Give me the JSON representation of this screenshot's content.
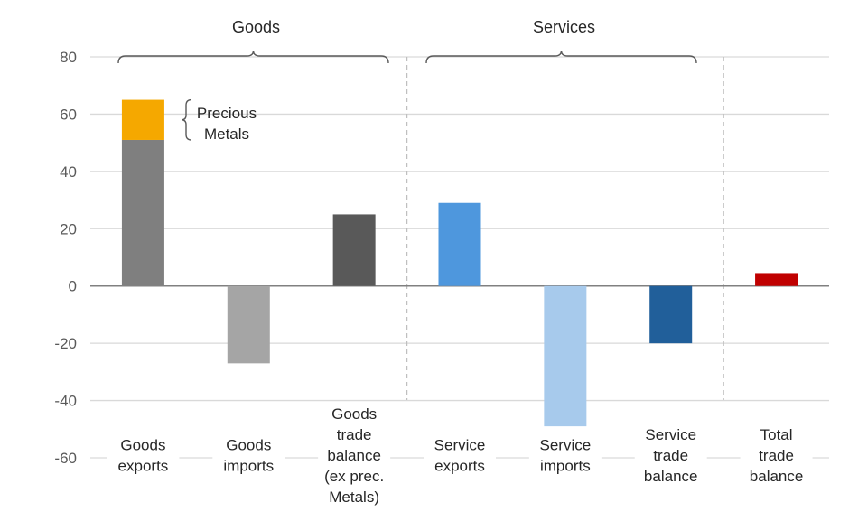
{
  "chart_data": {
    "type": "bar",
    "title": "",
    "xlabel": "",
    "ylabel": "",
    "ylim": [
      -60,
      80
    ],
    "yticks": [
      80,
      60,
      40,
      20,
      0,
      -20,
      -40,
      -60
    ],
    "grid": true,
    "groups": [
      {
        "name": "Goods",
        "categories": [
          0,
          1,
          2
        ]
      },
      {
        "name": "Services",
        "categories": [
          3,
          4,
          5
        ]
      }
    ],
    "categories": [
      [
        "Goods",
        "exports"
      ],
      [
        "Goods",
        "imports"
      ],
      [
        "Goods",
        "trade",
        "balance",
        "(ex prec.",
        "Metals)"
      ],
      [
        "Service",
        "exports"
      ],
      [
        "Service",
        "imports"
      ],
      [
        "Service",
        "trade",
        "balance"
      ],
      [
        "Total",
        "trade",
        "balance"
      ]
    ],
    "series": [
      {
        "name": "Value",
        "values": [
          51,
          -27,
          25,
          29,
          -49,
          -20,
          4.5
        ],
        "colors": [
          "#7f7f7f",
          "#a5a5a5",
          "#595959",
          "#4e97dd",
          "#a7caec",
          "#215f9a",
          "#c00000"
        ]
      },
      {
        "name": "Precious Metals",
        "values": [
          14,
          0,
          0,
          0,
          0,
          0,
          0
        ],
        "color": "#f5a800"
      }
    ],
    "annotation": {
      "lines": [
        "Precious",
        "Metals"
      ]
    }
  }
}
